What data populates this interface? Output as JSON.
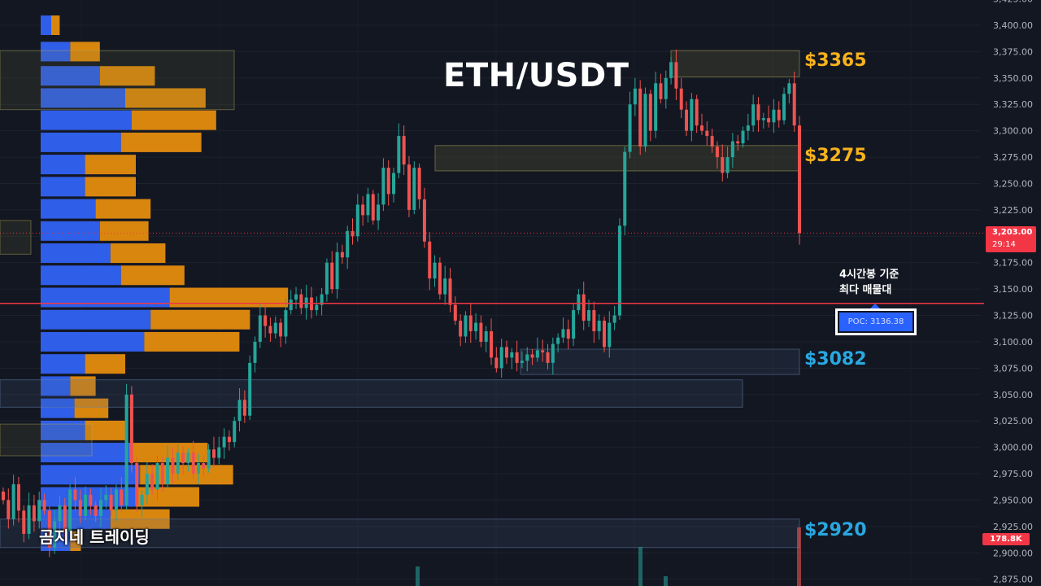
{
  "chart_title": "ETH/USDT",
  "watermark": "곰지네 트레이딩",
  "annotation": {
    "line1": "4시간봉 기준",
    "line2": "최다 매물대"
  },
  "poc_label": "POC: 3136.38",
  "current_price_tag": {
    "price": "3,203.00",
    "countdown": "29:14"
  },
  "volume_tag": "178.8K",
  "level_labels": [
    {
      "text": "$3365",
      "price": 3365,
      "color": "#f7b21c"
    },
    {
      "text": "$3275",
      "price": 3275,
      "color": "#f7b21c"
    },
    {
      "text": "$3082",
      "price": 3082,
      "color": "#29a8e0"
    },
    {
      "text": "$2920",
      "price": 2920,
      "color": "#29a8e0"
    }
  ],
  "colors": {
    "background": "#131722",
    "up": "#26a69a",
    "down": "#ef5350",
    "poc_line": "#f23645",
    "vp_buy": "#2f5ee8",
    "vp_sell": "#d9860f"
  },
  "chart_data": {
    "type": "candlestick",
    "title": "ETH/USDT",
    "timeframe_note": "4시간봉 기준",
    "y_axis": {
      "ticks": [
        2875,
        2900,
        2925,
        2950,
        2975,
        3000,
        3025,
        3050,
        3075,
        3100,
        3125,
        3150,
        3175,
        3200,
        3225,
        3250,
        3275,
        3300,
        3325,
        3350,
        3375,
        3400,
        3425
      ],
      "tick_labels": [
        "2,875.00",
        "2,900.00",
        "2,925.00",
        "2,950.00",
        "2,975.00",
        "3,000.00",
        "3,025.00",
        "3,050.00",
        "3,075.00",
        "3,100.00",
        "3,125.00",
        "3,150.00",
        "3,175.00",
        "3,200.00",
        "3,225.00",
        "3,250.00",
        "3,275.00",
        "3,300.00",
        "3,325.00",
        "3,350.00",
        "3,375.00",
        "3,400.00",
        "3,425.00"
      ],
      "range": [
        2870,
        3430
      ],
      "side": "right"
    },
    "current_price": 3203.0,
    "poc": 3136.38,
    "grid": true,
    "candles_close": [
      2950,
      2932,
      2965,
      2940,
      2918,
      2945,
      2930,
      2950,
      2940,
      2905,
      2930,
      2945,
      2920,
      2960,
      2950,
      2935,
      2955,
      2945,
      2935,
      2950,
      2955,
      2940,
      2960,
      2945,
      3050,
      2985,
      2945,
      2955,
      2975,
      2960,
      2985,
      2965,
      2990,
      2975,
      2995,
      2985,
      2995,
      2975,
      2985,
      2980,
      2998,
      2990,
      3000,
      3010,
      3005,
      3025,
      3045,
      3030,
      3080,
      3100,
      3125,
      3115,
      3108,
      3118,
      3105,
      3130,
      3140,
      3145,
      3132,
      3142,
      3130,
      3135,
      3145,
      3175,
      3150,
      3185,
      3180,
      3205,
      3200,
      3230,
      3220,
      3240,
      3215,
      3230,
      3265,
      3240,
      3260,
      3295,
      3268,
      3225,
      3265,
      3235,
      3195,
      3160,
      3175,
      3145,
      3160,
      3135,
      3120,
      3105,
      3125,
      3110,
      3118,
      3100,
      3110,
      3085,
      3075,
      3095,
      3085,
      3090,
      3080,
      3082,
      3088,
      3085,
      3092,
      3090,
      3080,
      3098,
      3104,
      3112,
      3103,
      3130,
      3145,
      3120,
      3130,
      3110,
      3120,
      3095,
      3118,
      3125,
      3210,
      3280,
      3325,
      3340,
      3285,
      3335,
      3300,
      3345,
      3330,
      3350,
      3365,
      3340,
      3320,
      3300,
      3330,
      3305,
      3300,
      3295,
      3285,
      3275,
      3260,
      3275,
      3290,
      3288,
      3300,
      3305,
      3325,
      3310,
      3312,
      3308,
      3320,
      3310,
      3335,
      3345,
      3305,
      3203
    ]
  },
  "volume_profile_rows": [
    {
      "price": 3400,
      "buy": 5,
      "sell": 4
    },
    {
      "price": 3375,
      "buy": 14,
      "sell": 14
    },
    {
      "price": 3352,
      "buy": 28,
      "sell": 26
    },
    {
      "price": 3331,
      "buy": 40,
      "sell": 38
    },
    {
      "price": 3310,
      "buy": 43,
      "sell": 40
    },
    {
      "price": 3289,
      "buy": 38,
      "sell": 38
    },
    {
      "price": 3268,
      "buy": 21,
      "sell": 24
    },
    {
      "price": 3247,
      "buy": 21,
      "sell": 24
    },
    {
      "price": 3226,
      "buy": 26,
      "sell": 26
    },
    {
      "price": 3205,
      "buy": 28,
      "sell": 23
    },
    {
      "price": 3184,
      "buy": 33,
      "sell": 26
    },
    {
      "price": 3163,
      "buy": 38,
      "sell": 30
    },
    {
      "price": 3142,
      "buy": 61,
      "sell": 56
    },
    {
      "price": 3121,
      "buy": 52,
      "sell": 47
    },
    {
      "price": 3100,
      "buy": 49,
      "sell": 45
    },
    {
      "price": 3079,
      "buy": 21,
      "sell": 19
    },
    {
      "price": 3058,
      "buy": 14,
      "sell": 12
    },
    {
      "price": 3037,
      "buy": 16,
      "sell": 16
    },
    {
      "price": 3016,
      "buy": 21,
      "sell": 19
    },
    {
      "price": 2995,
      "buy": 42,
      "sell": 37
    },
    {
      "price": 2974,
      "buy": 47,
      "sell": 44
    },
    {
      "price": 2953,
      "buy": 45,
      "sell": 30
    },
    {
      "price": 2932,
      "buy": 33,
      "sell": 28
    },
    {
      "price": 2911,
      "buy": 14,
      "sell": 5
    }
  ],
  "zones": [
    {
      "from": 3351,
      "to": 3376,
      "style": "supply"
    },
    {
      "from": 3262,
      "to": 3286,
      "style": "supply"
    },
    {
      "from": 3069,
      "to": 3093,
      "style": "demand"
    },
    {
      "from": 3038,
      "to": 3064,
      "style": "demand"
    },
    {
      "from": 2905,
      "to": 2932,
      "style": "demand"
    }
  ],
  "volume_bars": [
    {
      "value": 0.6,
      "dir": "up"
    },
    {
      "value": 0.15,
      "dir": "up"
    },
    {
      "value": 0.3,
      "dir": "up"
    },
    {
      "value": 0.9,
      "dir": "down"
    }
  ]
}
